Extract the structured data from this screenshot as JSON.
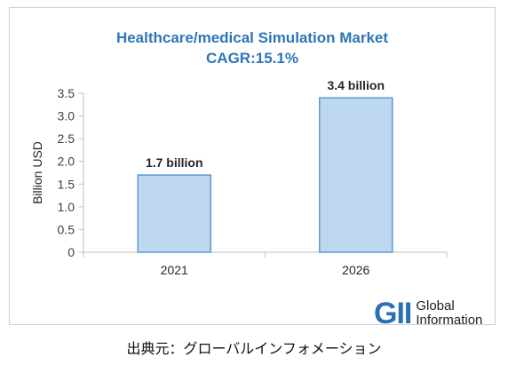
{
  "chart_data": {
    "type": "bar",
    "title": "Healthcare/medical Simulation Market",
    "subtitle": "CAGR:15.1%",
    "categories": [
      "2021",
      "2026"
    ],
    "values": [
      1.7,
      3.4
    ],
    "data_labels": [
      "1.7 billion",
      "3.4 billion"
    ],
    "xlabel": "",
    "ylabel": "Billion USD",
    "ylim": [
      0,
      3.5
    ],
    "yticks": [
      "0",
      "0.5",
      "1.0",
      "1.5",
      "2.0",
      "2.5",
      "3.0",
      "3.5"
    ],
    "ytick_values": [
      0,
      0.5,
      1.0,
      1.5,
      2.0,
      2.5,
      3.0,
      3.5
    ],
    "grid": false,
    "colors": {
      "bar_fill": "#bdd7ee",
      "bar_edge": "#5b9bd5",
      "title": "#2e75b6"
    }
  },
  "logo": {
    "mark": "GII",
    "line1": "Global",
    "line2": "Information"
  },
  "source": "出典元：グローバルインフォメーション"
}
